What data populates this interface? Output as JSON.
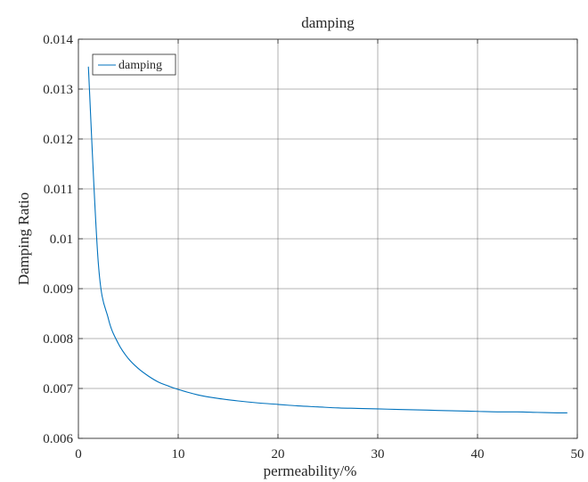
{
  "chart_data": {
    "type": "line",
    "title": "damping",
    "xlabel": "permeability/%",
    "ylabel": "Damping Ratio",
    "xlim": [
      0,
      50
    ],
    "ylim": [
      0.006,
      0.014
    ],
    "x_ticks": [
      "0",
      "10",
      "20",
      "30",
      "40",
      "50"
    ],
    "y_ticks": [
      "0.006",
      "0.007",
      "0.008",
      "0.009",
      "0.01",
      "0.011",
      "0.012",
      "0.013",
      "0.014"
    ],
    "grid": true,
    "legend": {
      "position": "top-left",
      "entries": [
        "damping"
      ]
    },
    "series": [
      {
        "name": "damping",
        "color": "#0072BD",
        "x": [
          1,
          2,
          3,
          4,
          5,
          6,
          7,
          8,
          9,
          10,
          12,
          14,
          16,
          18,
          20,
          22,
          24,
          26,
          28,
          30,
          32,
          34,
          36,
          38,
          40,
          42,
          44,
          46,
          48,
          49
        ],
        "y": [
          0.01345,
          0.0095,
          0.0084,
          0.0079,
          0.0076,
          0.0074,
          0.00725,
          0.00713,
          0.00705,
          0.00698,
          0.00687,
          0.0068,
          0.00675,
          0.00671,
          0.00668,
          0.00665,
          0.00663,
          0.00661,
          0.0066,
          0.00659,
          0.00658,
          0.00657,
          0.00656,
          0.00655,
          0.00654,
          0.00653,
          0.00653,
          0.00652,
          0.00651,
          0.00651
        ]
      }
    ]
  }
}
